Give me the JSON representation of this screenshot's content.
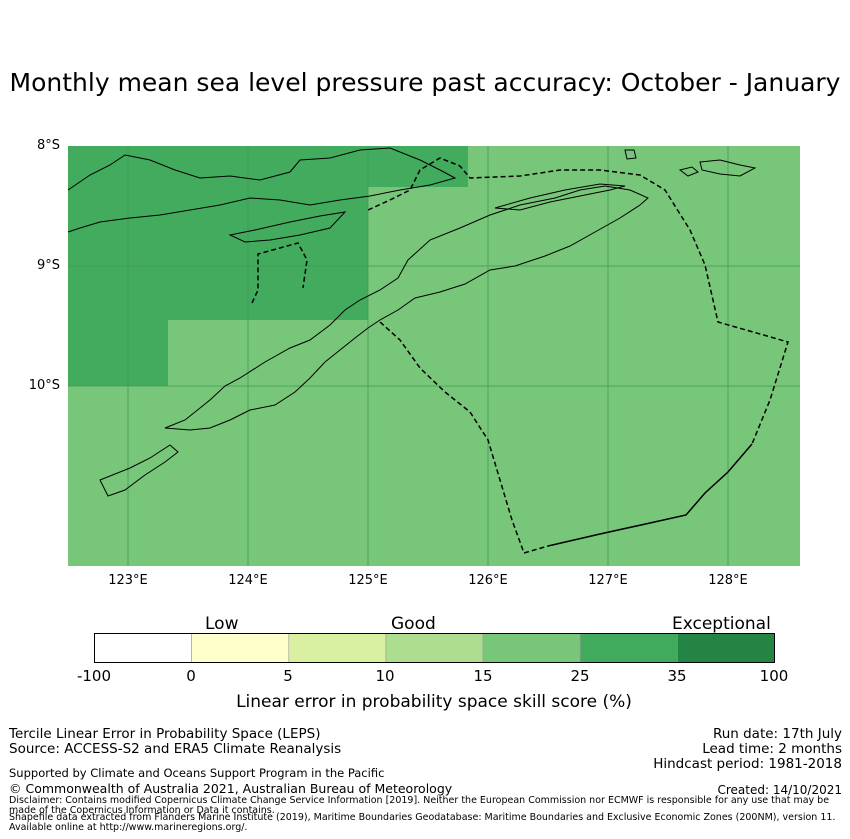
{
  "title": "Monthly mean sea level pressure past accuracy: October - January",
  "map": {
    "lat_labels": [
      "8°S",
      "9°S",
      "10°S"
    ],
    "lon_labels": [
      "123°E",
      "124°E",
      "125°E",
      "126°E",
      "127°E",
      "128°E"
    ],
    "extent": {
      "lon": [
        122.5,
        128.6
      ],
      "lat": [
        -8.0,
        -11.5
      ]
    },
    "regions": [
      {
        "category": "25-35",
        "color": "#42ab5d",
        "area": "north-west"
      },
      {
        "category": "15-25",
        "color": "#78c679",
        "area": "remainder"
      }
    ]
  },
  "colorbar": {
    "categories": [
      "Low",
      "Good",
      "Exceptional"
    ],
    "ticks": [
      "-100",
      "0",
      "5",
      "10",
      "15",
      "25",
      "35",
      "100"
    ],
    "colors": [
      "#ffffff",
      "#ffffcc",
      "#d9f0a3",
      "#addd8e",
      "#78c679",
      "#41ab5d",
      "#238443"
    ],
    "label": "Linear error in probability space skill score (%)"
  },
  "footer": {
    "left1": "Tercile Linear Error in Probability Space (LEPS)",
    "left2": "Source: ACCESS-S2 and ERA5 Climate Reanalysis",
    "support": "Supported by Climate and Oceans Support Program in the Pacific",
    "copyright": "© Commonwealth of Australia 2021, Australian Bureau of Meteorology",
    "run_date": "Run date: 17th July",
    "lead_time": "Lead time: 2 months",
    "hindcast": "Hindcast period: 1981-2018",
    "created": "Created: 14/10/2021",
    "disclaimer": "Disclaimer: Contains modified Copernicus Climate Change Service Information [2019]. Neither the European Commission nor ECMWF is responsible for any use that may be made of the Copernicus Information or Data it contains.",
    "shapefile": "Shapefile data extracted from Flanders Marine Institute (2019), Maritime Boundaries Geodatabase: Maritime Boundaries and Exclusive Economic Zones (200NM), version 11. Available online at http://www.marineregions.org/."
  }
}
